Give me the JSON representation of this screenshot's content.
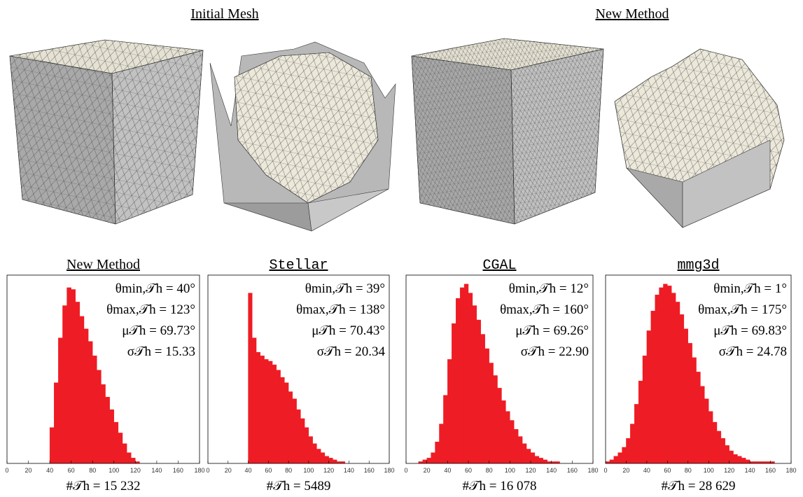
{
  "figure": {
    "headings": [
      "Initial Mesh",
      "New Method"
    ]
  },
  "chart_data": [
    {
      "type": "histogram",
      "title": "New Method",
      "color": "#ee1c24",
      "bins": [
        0,
        4,
        8,
        12,
        16,
        20,
        24,
        28,
        32,
        36,
        40,
        44,
        48,
        52,
        56,
        60,
        64,
        68,
        72,
        76,
        80,
        84,
        88,
        92,
        96,
        100,
        104,
        108,
        112,
        116,
        120,
        124,
        128,
        132,
        136,
        140,
        144,
        148,
        152,
        156,
        160,
        164,
        168,
        172,
        176,
        180
      ],
      "values": [
        0,
        0,
        0,
        0,
        0,
        0,
        0,
        0,
        0,
        0,
        20,
        45,
        70,
        88,
        98,
        97,
        90,
        82,
        75,
        68,
        60,
        52,
        44,
        37,
        30,
        23,
        17,
        11,
        6,
        3,
        1,
        0,
        0,
        0,
        0,
        0,
        0,
        0,
        0,
        0,
        0,
        0,
        0,
        0,
        0
      ],
      "xlim": [
        0,
        180
      ],
      "ylim": [
        0,
        105
      ],
      "xticks": [
        0,
        20,
        40,
        60,
        80,
        100,
        120,
        140,
        160,
        180
      ],
      "annotations": [
        "θmin,𝒯h = 40°",
        "θmax,𝒯h = 123°",
        "μ𝒯h = 69.73°",
        "σ𝒯h = 15.33"
      ],
      "count_label": "#𝒯h = 15 232"
    },
    {
      "type": "histogram",
      "title": "Stellar",
      "color": "#ee1c24",
      "bins": [
        0,
        4,
        8,
        12,
        16,
        20,
        24,
        28,
        32,
        36,
        40,
        44,
        48,
        52,
        56,
        60,
        64,
        68,
        72,
        76,
        80,
        84,
        88,
        92,
        96,
        100,
        104,
        108,
        112,
        116,
        120,
        124,
        128,
        132,
        136,
        140,
        144,
        148,
        152,
        156,
        160,
        164,
        168,
        172,
        176,
        180
      ],
      "values": [
        0,
        0,
        0,
        0,
        0,
        0,
        0,
        0,
        0,
        0,
        95,
        70,
        62,
        60,
        58,
        57,
        55,
        52,
        48,
        45,
        40,
        36,
        30,
        25,
        20,
        15,
        11,
        8,
        6,
        4,
        3,
        2,
        1,
        1,
        0,
        0,
        0,
        0,
        0,
        0,
        0,
        0,
        0,
        0,
        0
      ],
      "xlim": [
        0,
        180
      ],
      "ylim": [
        0,
        105
      ],
      "xticks": [
        0,
        20,
        40,
        60,
        80,
        100,
        120,
        140,
        160,
        180
      ],
      "annotations": [
        "θmin,𝒯h = 39°",
        "θmax,𝒯h = 138°",
        "μ𝒯h = 70.43°",
        "σ𝒯h = 20.34"
      ],
      "count_label": "#𝒯h = 5489"
    },
    {
      "type": "histogram",
      "title": "CGAL",
      "color": "#ee1c24",
      "bins": [
        0,
        4,
        8,
        12,
        16,
        20,
        24,
        28,
        32,
        36,
        40,
        44,
        48,
        52,
        56,
        60,
        64,
        68,
        72,
        76,
        80,
        84,
        88,
        92,
        96,
        100,
        104,
        108,
        112,
        116,
        120,
        124,
        128,
        132,
        136,
        140,
        144,
        148,
        152,
        156,
        160,
        164,
        168,
        172,
        176,
        180
      ],
      "values": [
        0,
        0,
        0,
        1,
        2,
        3,
        6,
        12,
        22,
        38,
        58,
        78,
        92,
        98,
        100,
        95,
        88,
        80,
        72,
        64,
        56,
        49,
        42,
        35,
        29,
        24,
        19,
        15,
        11,
        8,
        6,
        4,
        3,
        2,
        1,
        1,
        1,
        0,
        0,
        0,
        0,
        0,
        0,
        0,
        0
      ],
      "xlim": [
        0,
        180
      ],
      "ylim": [
        0,
        105
      ],
      "xticks": [
        0,
        20,
        40,
        60,
        80,
        100,
        120,
        140,
        160,
        180
      ],
      "annotations": [
        "θmin,𝒯h = 12°",
        "θmax,𝒯h = 160°",
        "μ𝒯h = 69.26°",
        "σ𝒯h = 22.90"
      ],
      "count_label": "#𝒯h = 16 078"
    },
    {
      "type": "histogram",
      "title": "mmg3d",
      "color": "#ee1c24",
      "bins": [
        0,
        4,
        8,
        12,
        16,
        20,
        24,
        28,
        32,
        36,
        40,
        44,
        48,
        52,
        56,
        60,
        64,
        68,
        72,
        76,
        80,
        84,
        88,
        92,
        96,
        100,
        104,
        108,
        112,
        116,
        120,
        124,
        128,
        132,
        136,
        140,
        144,
        148,
        152,
        156,
        160,
        164,
        168,
        172,
        176,
        180
      ],
      "values": [
        1,
        2,
        4,
        6,
        9,
        14,
        22,
        33,
        46,
        60,
        74,
        85,
        94,
        98,
        100,
        99,
        95,
        90,
        83,
        75,
        67,
        59,
        51,
        43,
        36,
        29,
        23,
        18,
        14,
        10,
        7,
        5,
        4,
        3,
        2,
        1,
        1,
        1,
        1,
        1,
        1,
        0,
        0,
        0,
        0
      ],
      "xlim": [
        0,
        180
      ],
      "ylim": [
        0,
        105
      ],
      "xticks": [
        0,
        20,
        40,
        60,
        80,
        100,
        120,
        140,
        160,
        180
      ],
      "annotations": [
        "θmin,𝒯h = 1°",
        "θmax,𝒯h = 175°",
        "μ𝒯h = 69.83°",
        "σ𝒯h = 24.78"
      ],
      "count_label": "#𝒯h = 28 629"
    }
  ]
}
